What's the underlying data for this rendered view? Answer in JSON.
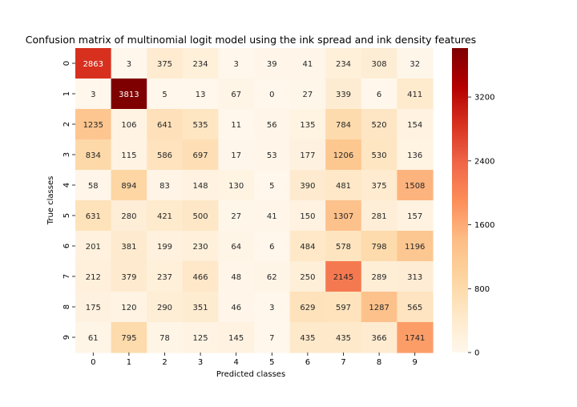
{
  "chart_data": {
    "type": "heatmap",
    "title": "Confusion matrix of multinomial logit model using the ink spread and ink density features",
    "xlabel": "Predicted classes",
    "ylabel": "True classes",
    "x_categories": [
      "0",
      "1",
      "2",
      "3",
      "4",
      "5",
      "6",
      "7",
      "8",
      "9"
    ],
    "y_categories": [
      "0",
      "1",
      "2",
      "3",
      "4",
      "5",
      "6",
      "7",
      "8",
      "9"
    ],
    "values": [
      [
        2863,
        3,
        375,
        234,
        3,
        39,
        41,
        234,
        308,
        32
      ],
      [
        3,
        3813,
        5,
        13,
        67,
        0,
        27,
        339,
        6,
        411
      ],
      [
        1235,
        106,
        641,
        535,
        11,
        56,
        135,
        784,
        520,
        154
      ],
      [
        834,
        115,
        586,
        697,
        17,
        53,
        177,
        1206,
        530,
        136
      ],
      [
        58,
        894,
        83,
        148,
        130,
        5,
        390,
        481,
        375,
        1508
      ],
      [
        631,
        280,
        421,
        500,
        27,
        41,
        150,
        1307,
        281,
        157
      ],
      [
        201,
        381,
        199,
        230,
        64,
        6,
        484,
        578,
        798,
        1196
      ],
      [
        212,
        379,
        237,
        466,
        48,
        62,
        250,
        2145,
        289,
        313
      ],
      [
        175,
        120,
        290,
        351,
        46,
        3,
        629,
        597,
        1287,
        565
      ],
      [
        61,
        795,
        78,
        125,
        145,
        7,
        435,
        435,
        366,
        1741
      ]
    ],
    "colormap": "OrRd",
    "vmin": 0,
    "vmax": 3813,
    "colorbar_ticks": [
      0,
      800,
      1600,
      2400,
      3200
    ],
    "annotations": true,
    "grid": false,
    "colorbar_position": "right"
  }
}
